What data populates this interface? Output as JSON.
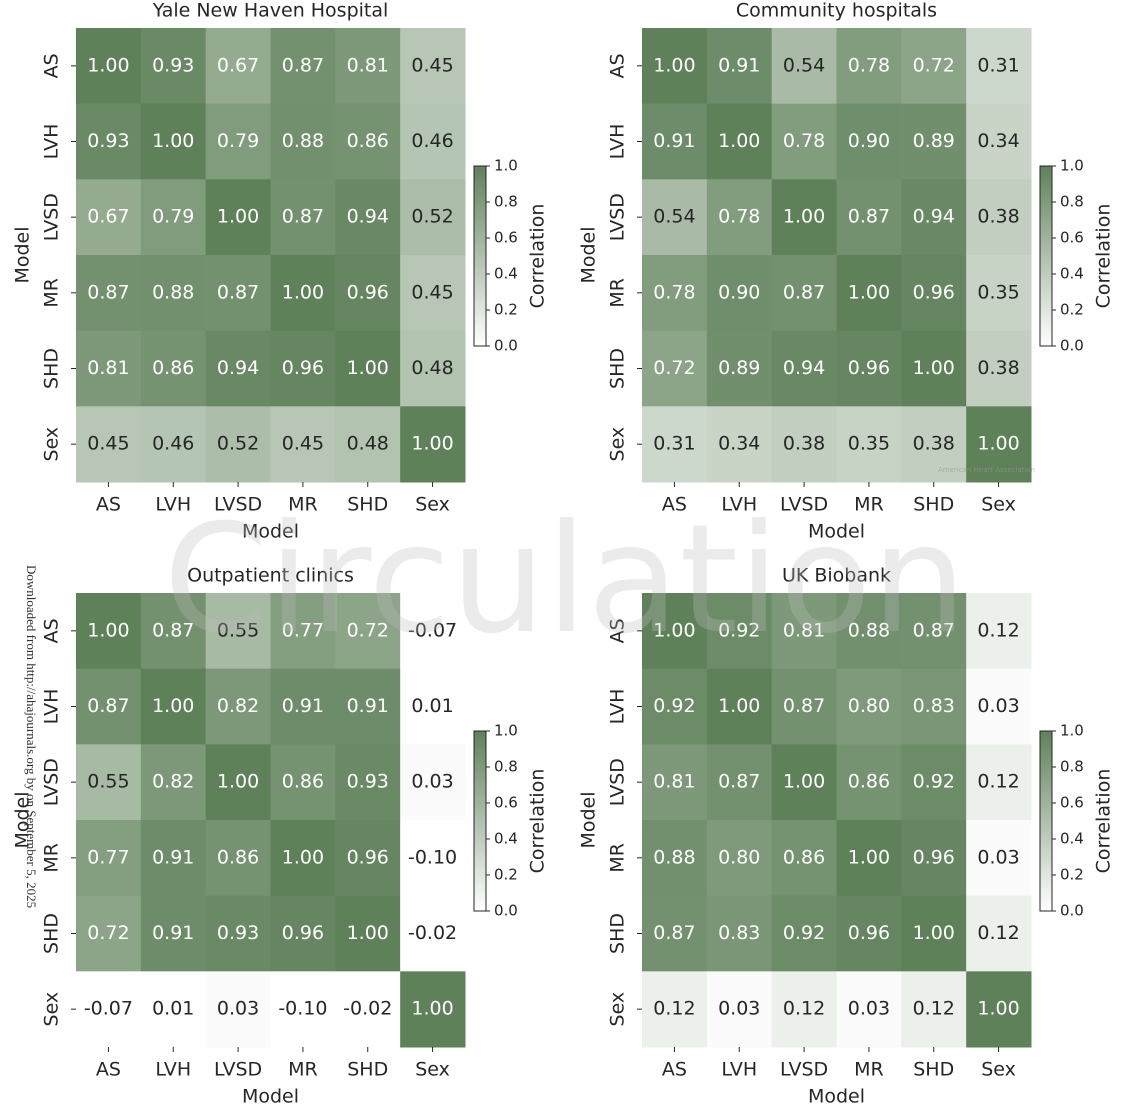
{
  "chart_data": [
    {
      "type": "heatmap",
      "title": "Yale New Haven Hospital",
      "x_label": "Model",
      "y_label": "Model",
      "categories": [
        "AS",
        "LVH",
        "LVSD",
        "MR",
        "SHD",
        "Sex"
      ],
      "y_categories": [
        "AS",
        "LVH",
        "LVSD",
        "MR",
        "SHD",
        "Sex"
      ],
      "values": [
        [
          1,
          0.93,
          0.67,
          0.87,
          0.81,
          0.45
        ],
        [
          0.93,
          1,
          0.79,
          0.88,
          0.86,
          0.46
        ],
        [
          0.67,
          0.79,
          1,
          0.87,
          0.94,
          0.52
        ],
        [
          0.87,
          0.88,
          0.87,
          1,
          0.96,
          0.45
        ],
        [
          0.81,
          0.86,
          0.94,
          0.96,
          1,
          0.48
        ],
        [
          0.45,
          0.46,
          0.52,
          0.45,
          0.48,
          1
        ]
      ],
      "value_labels": [
        [
          "1.00",
          "0.93",
          "0.67",
          "0.87",
          "0.81",
          "0.45"
        ],
        [
          "0.93",
          "1.00",
          "0.79",
          "0.88",
          "0.86",
          "0.46"
        ],
        [
          "0.67",
          "0.79",
          "1.00",
          "0.87",
          "0.94",
          "0.52"
        ],
        [
          "0.87",
          "0.88",
          "0.87",
          "1.00",
          "0.96",
          "0.45"
        ],
        [
          "0.81",
          "0.86",
          "0.94",
          "0.96",
          "1.00",
          "0.48"
        ],
        [
          "0.45",
          "0.46",
          "0.52",
          "0.45",
          "0.48",
          "1.00"
        ]
      ],
      "colorbar_label": "Correlation",
      "clim": [
        0,
        1
      ],
      "cticks": [
        {
          "value": 0,
          "label": "0.0"
        },
        0.2,
        0.4,
        0.6,
        0.8,
        {
          "value": 1,
          "label": "1.0"
        }
      ],
      "color": "#5f815a"
    },
    {
      "type": "heatmap",
      "title": "Community hospitals",
      "x_label": "Model",
      "y_label": "Model",
      "categories": [
        "AS",
        "LVH",
        "LVSD",
        "MR",
        "SHD",
        "Sex"
      ],
      "y_categories": [
        "AS",
        "LVH",
        "LVSD",
        "MR",
        "SHD",
        "Sex"
      ],
      "values": [
        [
          1,
          0.91,
          0.54,
          0.78,
          0.72,
          0.31
        ],
        [
          0.91,
          1,
          0.78,
          0.9,
          0.89,
          0.34
        ],
        [
          0.54,
          0.78,
          1,
          0.87,
          0.94,
          0.38
        ],
        [
          0.78,
          0.9,
          0.87,
          1,
          0.96,
          0.35
        ],
        [
          0.72,
          0.89,
          0.94,
          0.96,
          1,
          0.38
        ],
        [
          0.31,
          0.34,
          0.38,
          0.35,
          0.38,
          1
        ]
      ],
      "value_labels": [
        [
          "1.00",
          "0.91",
          "0.54",
          "0.78",
          "0.72",
          "0.31"
        ],
        [
          "0.91",
          "1.00",
          "0.78",
          "0.90",
          "0.89",
          "0.34"
        ],
        [
          "0.54",
          "0.78",
          "1.00",
          "0.87",
          "0.94",
          "0.38"
        ],
        [
          "0.78",
          "0.90",
          "0.87",
          "1.00",
          "0.96",
          "0.35"
        ],
        [
          "0.72",
          "0.89",
          "0.94",
          "0.96",
          "1.00",
          "0.38"
        ],
        [
          "0.31",
          "0.34",
          "0.38",
          "0.35",
          "0.38",
          "1.00"
        ]
      ],
      "colorbar_label": "Correlation",
      "clim": [
        0,
        1
      ],
      "cticks": [
        {
          "value": 0,
          "label": "0.0"
        },
        0.2,
        0.4,
        0.6,
        0.8,
        {
          "value": 1,
          "label": "1.0"
        }
      ],
      "color": "#5f815a"
    },
    {
      "type": "heatmap",
      "title": "Outpatient clinics",
      "x_label": "Model",
      "y_label": "Model",
      "categories": [
        "AS",
        "LVH",
        "LVSD",
        "MR",
        "SHD",
        "Sex"
      ],
      "y_categories": [
        "AS",
        "LVH",
        "LVSD",
        "MR",
        "SHD",
        "Sex"
      ],
      "values": [
        [
          1,
          0.87,
          0.55,
          0.77,
          0.72,
          -0.07
        ],
        [
          0.87,
          1,
          0.82,
          0.91,
          0.91,
          0.01
        ],
        [
          0.55,
          0.82,
          1,
          0.86,
          0.93,
          0.03
        ],
        [
          0.77,
          0.91,
          0.86,
          1,
          0.96,
          -0.1
        ],
        [
          0.72,
          0.91,
          0.93,
          0.96,
          1,
          -0.02
        ],
        [
          -0.07,
          0.01,
          0.03,
          -0.1,
          -0.02,
          1
        ]
      ],
      "value_labels": [
        [
          "1.00",
          "0.87",
          "0.55",
          "0.77",
          "0.72",
          "-0.07"
        ],
        [
          "0.87",
          "1.00",
          "0.82",
          "0.91",
          "0.91",
          "0.01"
        ],
        [
          "0.55",
          "0.82",
          "1.00",
          "0.86",
          "0.93",
          "0.03"
        ],
        [
          "0.77",
          "0.91",
          "0.86",
          "1.00",
          "0.96",
          "-0.10"
        ],
        [
          "0.72",
          "0.91",
          "0.93",
          "0.96",
          "1.00",
          "-0.02"
        ],
        [
          "-0.07",
          "0.01",
          "0.03",
          "-0.10",
          "-0.02",
          "1.00"
        ]
      ],
      "colorbar_label": "Correlation",
      "clim": [
        0,
        1
      ],
      "cticks": [
        {
          "value": 0,
          "label": "0.0"
        },
        0.2,
        0.4,
        0.6,
        0.8,
        {
          "value": 1,
          "label": "1.0"
        }
      ],
      "color": "#5f815a"
    },
    {
      "type": "heatmap",
      "title": "UK Biobank",
      "x_label": "Model",
      "y_label": "Model",
      "categories": [
        "AS",
        "LVH",
        "LVSD",
        "MR",
        "SHD",
        "Sex"
      ],
      "y_categories": [
        "AS",
        "LVH",
        "LVSD",
        "MR",
        "SHD",
        "Sex"
      ],
      "values": [
        [
          1,
          0.92,
          0.81,
          0.88,
          0.87,
          0.12
        ],
        [
          0.92,
          1,
          0.87,
          0.8,
          0.83,
          0.03
        ],
        [
          0.81,
          0.87,
          1,
          0.86,
          0.92,
          0.12
        ],
        [
          0.88,
          0.8,
          0.86,
          1,
          0.96,
          0.03
        ],
        [
          0.87,
          0.83,
          0.92,
          0.96,
          1,
          0.12
        ],
        [
          0.12,
          0.03,
          0.12,
          0.03,
          0.12,
          1
        ]
      ],
      "value_labels": [
        [
          "1.00",
          "0.92",
          "0.81",
          "0.88",
          "0.87",
          "0.12"
        ],
        [
          "0.92",
          "1.00",
          "0.87",
          "0.80",
          "0.83",
          "0.03"
        ],
        [
          "0.81",
          "0.87",
          "1.00",
          "0.86",
          "0.92",
          "0.12"
        ],
        [
          "0.88",
          "0.80",
          "0.86",
          "1.00",
          "0.96",
          "0.03"
        ],
        [
          "0.87",
          "0.83",
          "0.92",
          "0.96",
          "1.00",
          "0.12"
        ],
        [
          "0.12",
          "0.03",
          "0.12",
          "0.03",
          "0.12",
          "1.00"
        ]
      ],
      "colorbar_label": "Correlation",
      "clim": [
        0,
        1
      ],
      "cticks": [
        {
          "value": 0,
          "label": "0.0"
        },
        0.2,
        0.4,
        0.6,
        0.8,
        {
          "value": 1,
          "label": "1.0"
        }
      ],
      "color": "#5f815a"
    }
  ],
  "watermarks": {
    "journal": "Circulation",
    "download_note": "Downloaded from http://ahajournals.org by on September 5, 2025",
    "logo": "American Heart Association"
  }
}
